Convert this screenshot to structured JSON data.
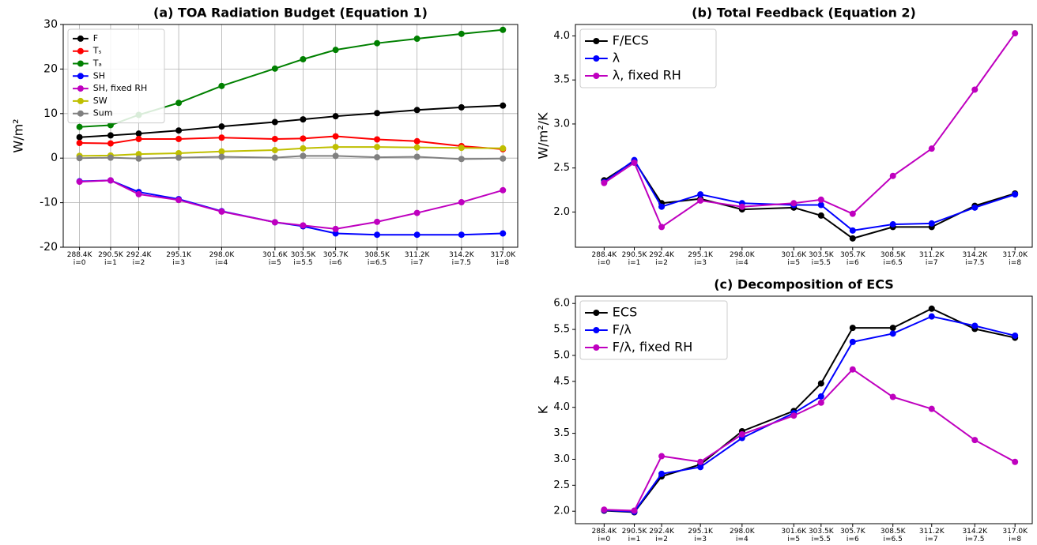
{
  "chart_data": [
    {
      "type": "line",
      "title": "(a) TOA Radiation Budget (Equation 1)",
      "y_label": "W/m²",
      "x": [
        288.4,
        290.5,
        292.4,
        295.1,
        298.0,
        301.6,
        303.5,
        305.7,
        308.5,
        311.2,
        314.2,
        317.0
      ],
      "xlim": [
        287.3,
        318.0
      ],
      "xticks": [
        {
          "value": 288.4,
          "label": "288.4K\ni=0"
        },
        {
          "value": 290.5,
          "label": "290.5K\ni=1"
        },
        {
          "value": 292.4,
          "label": "292.4K\ni=2"
        },
        {
          "value": 295.1,
          "label": "295.1K\ni=3"
        },
        {
          "value": 298.0,
          "label": "298.0K\ni=4"
        },
        {
          "value": 301.6,
          "label": "301.6K\ni=5"
        },
        {
          "value": 303.5,
          "label": "303.5K\ni=5.5"
        },
        {
          "value": 305.7,
          "label": "305.7K\ni=6"
        },
        {
          "value": 308.5,
          "label": "308.5K\ni=6.5"
        },
        {
          "value": 311.2,
          "label": "311.2K\ni=7"
        },
        {
          "value": 314.2,
          "label": "314.2K\ni=7.5"
        },
        {
          "value": 317.0,
          "label": "317.0K\ni=8"
        }
      ],
      "ylim": [
        -20,
        30
      ],
      "yticks": [
        -20,
        -10,
        0,
        10,
        20,
        30
      ],
      "grid": true,
      "legend": "upper left",
      "series": [
        {
          "name": "F",
          "color": "#000000",
          "values": [
            4.7,
            5.1,
            5.5,
            6.2,
            7.1,
            8.1,
            8.7,
            9.4,
            10.1,
            10.8,
            11.4,
            11.8
          ]
        },
        {
          "name": "Tₛ",
          "color": "#ff0000",
          "values": [
            3.4,
            3.3,
            4.3,
            4.3,
            4.6,
            4.3,
            4.4,
            4.9,
            4.2,
            3.8,
            2.7,
            2.0
          ]
        },
        {
          "name": "Tₐ",
          "color": "#008000",
          "values": [
            7.0,
            7.4,
            9.7,
            12.4,
            16.2,
            20.1,
            22.2,
            24.3,
            25.8,
            26.8,
            27.9,
            28.8
          ]
        },
        {
          "name": "SH",
          "color": "#0000ff",
          "values": [
            -5.2,
            -5.0,
            -7.6,
            -9.2,
            -11.9,
            -14.4,
            -15.3,
            -16.9,
            -17.2,
            -17.2,
            -17.2,
            -16.9
          ]
        },
        {
          "name": "SH, fixed RH",
          "color": "#bf00bf",
          "values": [
            -5.3,
            -5.0,
            -8.1,
            -9.4,
            -12.0,
            -14.4,
            -15.1,
            -15.9,
            -14.3,
            -12.3,
            -9.9,
            -7.2
          ]
        },
        {
          "name": "SW",
          "color": "#bfbf00",
          "values": [
            0.5,
            0.6,
            0.9,
            1.1,
            1.5,
            1.8,
            2.2,
            2.5,
            2.5,
            2.4,
            2.3,
            2.2
          ]
        },
        {
          "name": "Sum",
          "color": "#808080",
          "values": [
            0.0,
            0.1,
            -0.1,
            0.1,
            0.3,
            0.1,
            0.5,
            0.5,
            0.2,
            0.3,
            -0.2,
            -0.1
          ]
        }
      ]
    },
    {
      "type": "line",
      "title": "(b) Total Feedback (Equation 2)",
      "y_label": "W/m²/K",
      "x": [
        288.4,
        290.5,
        292.4,
        295.1,
        298.0,
        301.6,
        303.5,
        305.7,
        308.5,
        311.2,
        314.2,
        317.0
      ],
      "xlim": [
        286.4,
        318.2
      ],
      "xticks": [
        {
          "value": 288.4,
          "label": "288.4K\ni=0"
        },
        {
          "value": 290.5,
          "label": "290.5K\ni=1"
        },
        {
          "value": 292.4,
          "label": "292.4K\ni=2"
        },
        {
          "value": 295.1,
          "label": "295.1K\ni=3"
        },
        {
          "value": 298.0,
          "label": "298.0K\ni=4"
        },
        {
          "value": 301.6,
          "label": "301.6K\ni=5"
        },
        {
          "value": 303.5,
          "label": "303.5K\ni=5.5"
        },
        {
          "value": 305.7,
          "label": "305.7K\ni=6"
        },
        {
          "value": 308.5,
          "label": "308.5K\ni=6.5"
        },
        {
          "value": 311.2,
          "label": "311.2K\ni=7"
        },
        {
          "value": 314.2,
          "label": "314.2K\ni=7.5"
        },
        {
          "value": 317.0,
          "label": "317.0K\ni=8"
        }
      ],
      "ylim": [
        1.6,
        4.13
      ],
      "yticks": [
        {
          "value": 2,
          "label": "2.0"
        },
        {
          "value": 2.5,
          "label": "2.5"
        },
        {
          "value": 3,
          "label": "3.0"
        },
        {
          "value": 3.5,
          "label": "3.5"
        },
        {
          "value": 4,
          "label": "4.0"
        }
      ],
      "grid": false,
      "legend": "upper left",
      "series": [
        {
          "name": "F/ECS",
          "color": "#000000",
          "values": [
            2.36,
            2.58,
            2.1,
            2.15,
            2.03,
            2.05,
            1.96,
            1.7,
            1.83,
            1.83,
            2.07,
            2.21
          ]
        },
        {
          "name": "λ",
          "color": "#0000ff",
          "values": [
            2.34,
            2.59,
            2.06,
            2.2,
            2.1,
            2.08,
            2.08,
            1.79,
            1.86,
            1.87,
            2.05,
            2.2
          ]
        },
        {
          "name": "λ, fixed RH",
          "color": "#bf00bf",
          "values": [
            2.33,
            2.56,
            1.83,
            2.13,
            2.06,
            2.1,
            2.14,
            1.98,
            2.41,
            2.72,
            3.39,
            4.03
          ]
        }
      ]
    },
    {
      "type": "line",
      "title": "(c) Decomposition of ECS",
      "y_label": "K",
      "x": [
        288.4,
        290.5,
        292.4,
        295.1,
        298.0,
        301.6,
        303.5,
        305.7,
        308.5,
        311.2,
        314.2,
        317.0
      ],
      "xlim": [
        286.4,
        318.2
      ],
      "xticks": [
        {
          "value": 288.4,
          "label": "288.4K\ni=0"
        },
        {
          "value": 290.5,
          "label": "290.5K\ni=1"
        },
        {
          "value": 292.4,
          "label": "292.4K\ni=2"
        },
        {
          "value": 295.1,
          "label": "295.1K\ni=3"
        },
        {
          "value": 298.0,
          "label": "298.0K\ni=4"
        },
        {
          "value": 301.6,
          "label": "301.6K\ni=5"
        },
        {
          "value": 303.5,
          "label": "303.5K\ni=5.5"
        },
        {
          "value": 305.7,
          "label": "305.7K\ni=6"
        },
        {
          "value": 308.5,
          "label": "308.5K\ni=6.5"
        },
        {
          "value": 311.2,
          "label": "311.2K\ni=7"
        },
        {
          "value": 314.2,
          "label": "314.2K\ni=7.5"
        },
        {
          "value": 317.0,
          "label": "317.0K\ni=8"
        }
      ],
      "ylim": [
        1.76,
        6.14
      ],
      "yticks": [
        {
          "value": 2,
          "label": "2.0"
        },
        {
          "value": 2.5,
          "label": "2.5"
        },
        {
          "value": 3,
          "label": "3.0"
        },
        {
          "value": 3.5,
          "label": "3.5"
        },
        {
          "value": 4,
          "label": "4.0"
        },
        {
          "value": 4.5,
          "label": "4.5"
        },
        {
          "value": 5,
          "label": "5.0"
        },
        {
          "value": 5.5,
          "label": "5.5"
        },
        {
          "value": 6,
          "label": "6.0"
        }
      ],
      "grid": false,
      "legend": "upper left",
      "series": [
        {
          "name": "ECS",
          "color": "#000000",
          "values": [
            2.01,
            1.98,
            2.67,
            2.9,
            3.54,
            3.93,
            4.46,
            5.53,
            5.53,
            5.9,
            5.51,
            5.34
          ]
        },
        {
          "name": "F/λ",
          "color": "#0000ff",
          "values": [
            2.02,
            1.99,
            2.72,
            2.85,
            3.41,
            3.89,
            4.21,
            5.26,
            5.42,
            5.75,
            5.57,
            5.38
          ]
        },
        {
          "name": "F/λ, fixed RH",
          "color": "#bf00bf",
          "values": [
            2.03,
            2.01,
            3.06,
            2.95,
            3.48,
            3.84,
            4.09,
            4.73,
            4.2,
            3.97,
            3.37,
            2.95
          ]
        }
      ]
    }
  ]
}
